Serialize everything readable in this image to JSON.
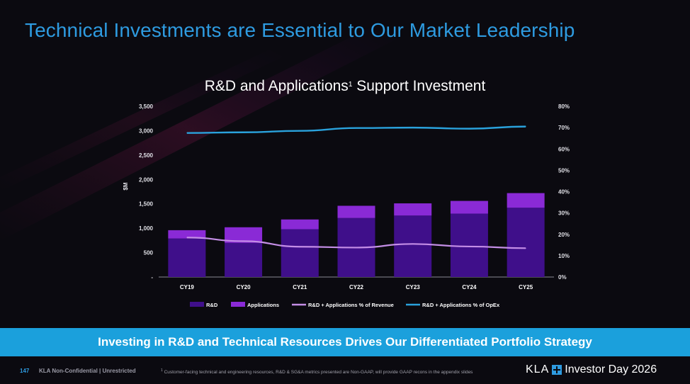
{
  "slide": {
    "title": "Technical Investments are Essential to Our Market Leadership",
    "banner": "Investing in R&D and Technical Resources Drives Our Differentiated Portfolio Strategy"
  },
  "footer": {
    "page_number": "147",
    "confidentiality": "KLA Non-Confidential | Unrestricted",
    "footnote_mark": "1",
    "footnote": "Customer-facing technical and engineering resources, R&D & SG&A metrics presented are Non-GAAP, will provide GAAP recons in the appendix slides",
    "brand_name": "KLA",
    "brand_event": "Investor Day 2026"
  },
  "colors": {
    "title_blue": "#2e9be0",
    "banner_blue": "#1ba0dc",
    "rd_bar": "#3f0f8a",
    "applications_bar": "#8a2ad6",
    "revenue_line": "#c48ee6",
    "opex_line": "#2aa2dc"
  },
  "chart_data": {
    "type": "bar",
    "title": "R&D and Applications",
    "title_superscript": "1",
    "title_suffix": " Support Investment",
    "categories": [
      "CY19",
      "CY20",
      "CY21",
      "CY22",
      "CY23",
      "CY24",
      "CY25"
    ],
    "ylabel": "$M",
    "ylim": [
      0,
      3500
    ],
    "y_ticks": [
      "-",
      "500",
      "1,000",
      "1,500",
      "2,000",
      "2,500",
      "3,000",
      "3,500"
    ],
    "y_tick_values": [
      0,
      500,
      1000,
      1500,
      2000,
      2500,
      3000,
      3500
    ],
    "y2lim": [
      0,
      80
    ],
    "y2_ticks": [
      "0%",
      "10%",
      "20%",
      "30%",
      "40%",
      "50%",
      "60%",
      "70%",
      "80%"
    ],
    "y2_tick_values": [
      0,
      10,
      20,
      30,
      40,
      50,
      60,
      70,
      80
    ],
    "stacked": true,
    "series": [
      {
        "name": "R&D",
        "type": "bar",
        "axis": "left",
        "values": [
          790,
          700,
          980,
          1210,
          1260,
          1300,
          1420
        ]
      },
      {
        "name": "Applications",
        "type": "bar",
        "axis": "left",
        "values": [
          170,
          320,
          200,
          250,
          250,
          260,
          300
        ]
      },
      {
        "name": "R&D + Applications % of Revenue",
        "type": "line",
        "axis": "right",
        "values": [
          18.5,
          16.8,
          14.2,
          13.8,
          15.5,
          14.3,
          13.5
        ]
      },
      {
        "name": "R&D + Applications % of OpEx",
        "type": "line",
        "axis": "right",
        "values": [
          67.5,
          67.8,
          68.5,
          69.8,
          70.0,
          69.5,
          70.5
        ]
      }
    ],
    "legend_position": "bottom",
    "grid": false
  }
}
